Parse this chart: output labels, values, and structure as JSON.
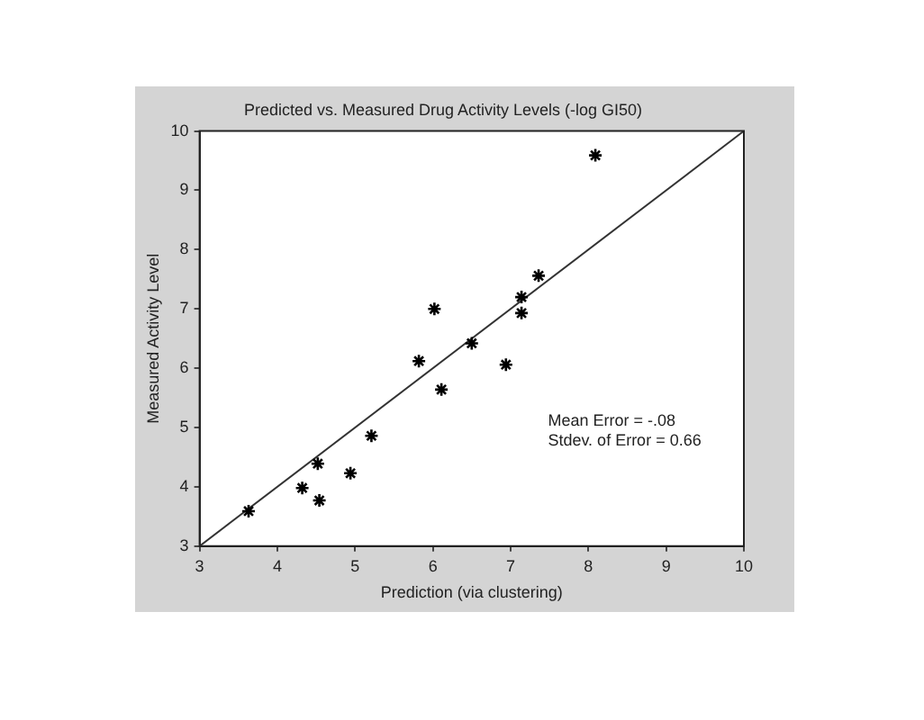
{
  "chart_data": {
    "type": "scatter",
    "title": "Predicted vs. Measured Drug Activity Levels (-log GI50)",
    "xlabel": "Prediction (via clustering)",
    "ylabel": "Measured Activity Level",
    "xlim": [
      3,
      10
    ],
    "ylim": [
      3,
      10
    ],
    "xticks": [
      3,
      4,
      5,
      6,
      7,
      8,
      9,
      10
    ],
    "yticks": [
      3,
      4,
      5,
      6,
      7,
      8,
      9,
      10
    ],
    "grid": false,
    "legend": false,
    "marker": "cross",
    "annotations": [
      "Mean Error = -.08",
      "Stdev. of Error = 0.66"
    ],
    "series": [
      {
        "type": "scatter",
        "color": "#000000",
        "x": [
          3.63,
          4.32,
          4.52,
          4.54,
          4.94,
          5.21,
          5.82,
          6.02,
          6.11,
          6.5,
          6.94,
          7.14,
          7.14,
          7.36,
          8.09
        ],
        "values": [
          3.59,
          3.98,
          4.39,
          3.77,
          4.23,
          4.86,
          6.12,
          7.0,
          5.64,
          6.42,
          6.06,
          7.2,
          6.93,
          7.56,
          9.59
        ]
      },
      {
        "type": "line",
        "color": "#333333",
        "marker": "none",
        "x": [
          3,
          10
        ],
        "values": [
          3,
          10
        ]
      }
    ]
  }
}
